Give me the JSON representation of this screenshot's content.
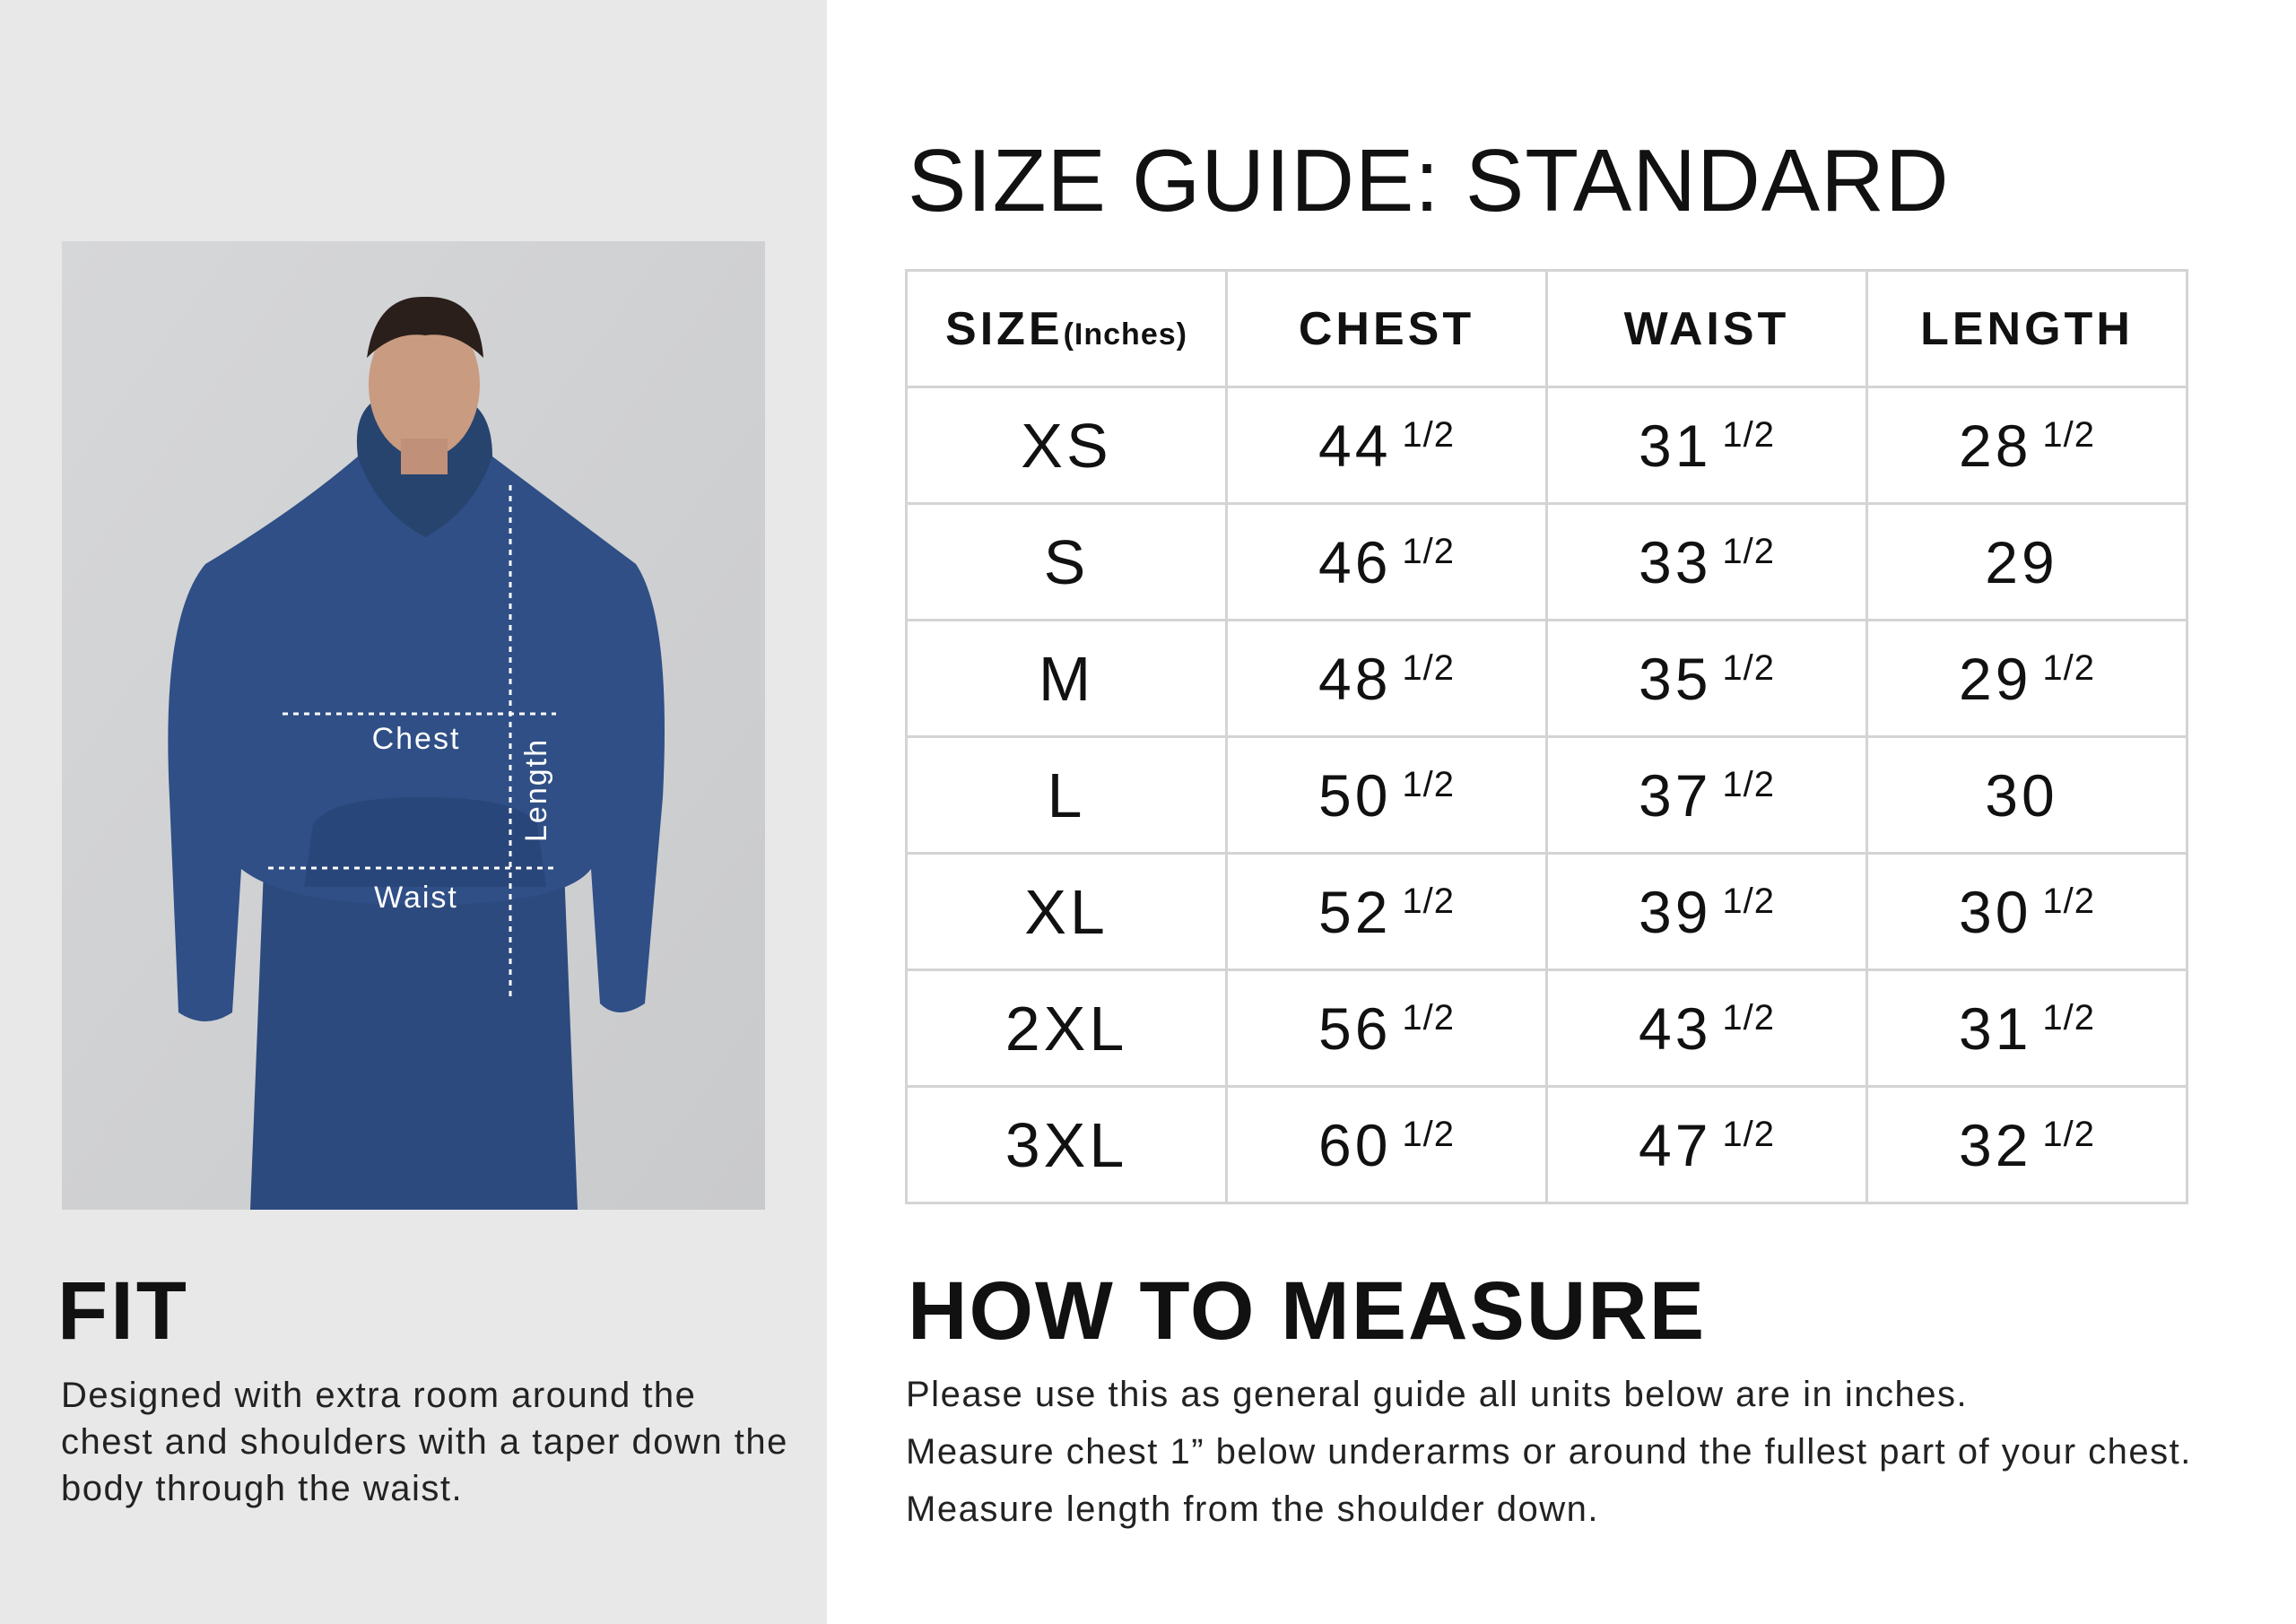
{
  "title": "SIZE GUIDE: STANDARD",
  "photo": {
    "labels": {
      "chest": "Chest",
      "waist": "Waist",
      "length": "Length"
    },
    "hoodie_color": "#2f4f86"
  },
  "table": {
    "headers": {
      "size": "SIZE",
      "size_unit": "(Inches)",
      "chest": "CHEST",
      "waist": "WAIST",
      "length": "LENGTH"
    },
    "rows": [
      {
        "size": "XS",
        "chest": "44",
        "chest_frac": "1/2",
        "waist": "31",
        "waist_frac": "1/2",
        "length": "28",
        "length_frac": "1/2"
      },
      {
        "size": "S",
        "chest": "46",
        "chest_frac": "1/2",
        "waist": "33",
        "waist_frac": "1/2",
        "length": "29",
        "length_frac": ""
      },
      {
        "size": "M",
        "chest": "48",
        "chest_frac": "1/2",
        "waist": "35",
        "waist_frac": "1/2",
        "length": "29",
        "length_frac": "1/2"
      },
      {
        "size": "L",
        "chest": "50",
        "chest_frac": "1/2",
        "waist": "37",
        "waist_frac": "1/2",
        "length": "30",
        "length_frac": ""
      },
      {
        "size": "XL",
        "chest": "52",
        "chest_frac": "1/2",
        "waist": "39",
        "waist_frac": "1/2",
        "length": "30",
        "length_frac": "1/2"
      },
      {
        "size": "2XL",
        "chest": "56",
        "chest_frac": "1/2",
        "waist": "43",
        "waist_frac": "1/2",
        "length": "31",
        "length_frac": "1/2"
      },
      {
        "size": "3XL",
        "chest": "60",
        "chest_frac": "1/2",
        "waist": "47",
        "waist_frac": "1/2",
        "length": "32",
        "length_frac": "1/2"
      }
    ]
  },
  "fit": {
    "title": "FIT",
    "text": "Designed with extra room around the chest and shoulders with a taper down the body through the waist."
  },
  "how_to_measure": {
    "title": "HOW TO MEASURE",
    "lines": [
      "Please use this as general guide all units below are in inches.",
      "Measure chest 1” below underarms or around the fullest part of your chest.",
      "Measure length from the shoulder down."
    ]
  }
}
